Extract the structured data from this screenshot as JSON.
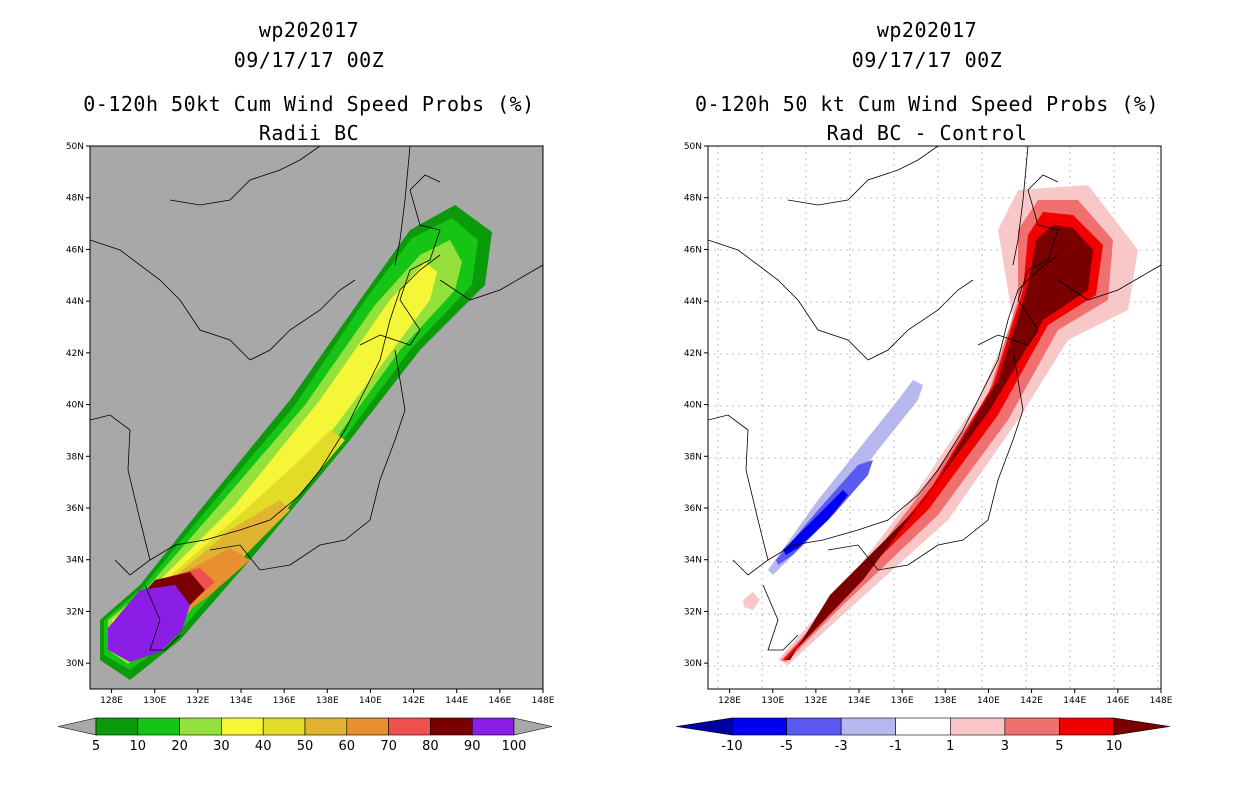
{
  "left_panel": {
    "storm_id": "wp202017",
    "datetime": "09/17/17 00Z",
    "product_title": "0-120h 50kt Cum Wind Speed Probs (%)",
    "subtitle": "Radii BC",
    "colorbar": {
      "labels": [
        "5",
        "10",
        "20",
        "30",
        "40",
        "50",
        "60",
        "70",
        "80",
        "90",
        "100"
      ],
      "colors": [
        "#0a9a0a",
        "#16c416",
        "#94e03c",
        "#f6f638",
        "#e2dc28",
        "#e0b430",
        "#e89030",
        "#f05050",
        "#7a0000",
        "#8a1ee6"
      ],
      "under_color": "#a8a8a8",
      "over_color": "#a8a8a8"
    }
  },
  "right_panel": {
    "storm_id": "wp202017",
    "datetime": "09/17/17 00Z",
    "product_title": "0-120h 50 kt Cum Wind Speed Probs (%)",
    "subtitle": "Rad BC - Control",
    "colorbar": {
      "labels": [
        "-10",
        "-5",
        "-3",
        "-1",
        "1",
        "3",
        "5",
        "10"
      ],
      "colors": [
        "#0000f0",
        "#5a5af0",
        "#b8b8f0",
        "#ffffff",
        "#f8c8c8",
        "#f07070",
        "#f00000"
      ],
      "under_color": "#0000a0",
      "over_color": "#7a0000"
    }
  },
  "map": {
    "lat_labels": [
      "50N",
      "48N",
      "46N",
      "44N",
      "42N",
      "40N",
      "38N",
      "36N",
      "34N",
      "32N",
      "30N"
    ],
    "lon_labels": [
      "128E",
      "130E",
      "132E",
      "134E",
      "136E",
      "138E",
      "140E",
      "142E",
      "144E",
      "146E",
      "148E"
    ],
    "lat_range": [
      29,
      50
    ],
    "lon_range": [
      127,
      148
    ],
    "background_color": "#a8a8a8"
  }
}
